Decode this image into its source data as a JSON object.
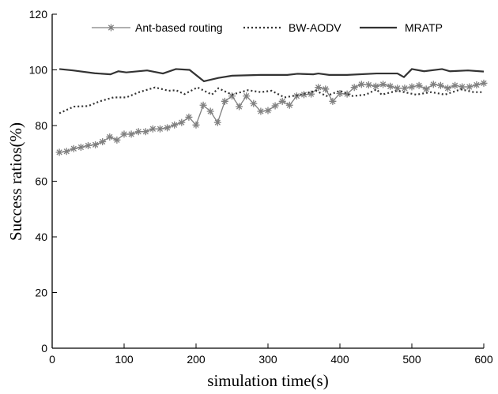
{
  "chart_data": {
    "type": "line",
    "title": "",
    "xlabel": "simulation time(s)",
    "ylabel": "Success ratios(%)",
    "xlim": [
      0,
      600
    ],
    "ylim": [
      0,
      120
    ],
    "xticks": [
      0,
      100,
      200,
      300,
      400,
      500,
      600
    ],
    "yticks": [
      0,
      20,
      40,
      60,
      80,
      100,
      120
    ],
    "grid": false,
    "legend_position": "top",
    "series": [
      {
        "name": "Ant-based routing",
        "style": "solid-star-markers",
        "color": "#808080",
        "x": [
          10,
          20,
          30,
          40,
          50,
          60,
          70,
          80,
          90,
          100,
          110,
          120,
          130,
          140,
          150,
          160,
          170,
          180,
          190,
          200,
          210,
          220,
          230,
          240,
          250,
          260,
          270,
          280,
          290,
          300,
          310,
          320,
          330,
          340,
          350,
          360,
          370,
          380,
          390,
          400,
          410,
          420,
          430,
          440,
          450,
          460,
          470,
          480,
          490,
          500,
          510,
          520,
          530,
          540,
          550,
          560,
          570,
          580,
          590,
          600
        ],
        "y": [
          70.4,
          70.7,
          71.7,
          72.2,
          72.8,
          73.1,
          74.2,
          75.9,
          74.8,
          76.9,
          76.9,
          77.8,
          77.8,
          78.8,
          78.8,
          79.2,
          80.2,
          81.1,
          83.0,
          80.2,
          87.3,
          85.1,
          81.1,
          88.7,
          90.6,
          86.8,
          90.6,
          87.9,
          85.1,
          85.4,
          87.1,
          88.7,
          87.3,
          90.6,
          91.1,
          91.3,
          93.7,
          93.1,
          88.7,
          91.5,
          91.3,
          93.7,
          94.8,
          94.6,
          94.1,
          94.8,
          94.1,
          93.4,
          93.4,
          93.9,
          94.4,
          93.1,
          94.8,
          94.4,
          93.4,
          94.4,
          93.9,
          93.9,
          94.6,
          95.2
        ]
      },
      {
        "name": "BW-AODV",
        "style": "dotted",
        "color": "#333333",
        "x": [
          10,
          30,
          50,
          66,
          85,
          103,
          121,
          143,
          162,
          172,
          184,
          202,
          222,
          231,
          250,
          272,
          290,
          305,
          323,
          345,
          367,
          381,
          400,
          418,
          436,
          451,
          458,
          480,
          506,
          527,
          546,
          568,
          586,
          600
        ],
        "y": [
          84.4,
          86.8,
          87.0,
          88.7,
          90.1,
          90.1,
          92.0,
          93.7,
          92.5,
          92.7,
          91.3,
          93.7,
          91.1,
          93.4,
          91.1,
          92.7,
          92.0,
          92.5,
          90.1,
          91.1,
          92.5,
          90.6,
          92.5,
          90.6,
          91.1,
          93.0,
          91.1,
          92.5,
          91.1,
          92.0,
          91.1,
          93.0,
          92.0,
          92.0
        ]
      },
      {
        "name": "MRATP",
        "style": "solid",
        "color": "#333333",
        "x": [
          10,
          29,
          59,
          81,
          92,
          103,
          132,
          154,
          172,
          191,
          211,
          231,
          250,
          290,
          327,
          341,
          363,
          370,
          385,
          410,
          451,
          480,
          489,
          500,
          517,
          542,
          553,
          578,
          600
        ],
        "y": [
          100.3,
          99.8,
          98.8,
          98.4,
          99.5,
          99.1,
          99.8,
          98.7,
          100.3,
          100.0,
          95.9,
          97.1,
          97.9,
          98.2,
          98.2,
          98.6,
          98.4,
          98.7,
          98.2,
          98.2,
          98.7,
          98.7,
          97.4,
          100.3,
          99.5,
          100.3,
          99.5,
          99.8,
          99.4
        ]
      }
    ]
  }
}
